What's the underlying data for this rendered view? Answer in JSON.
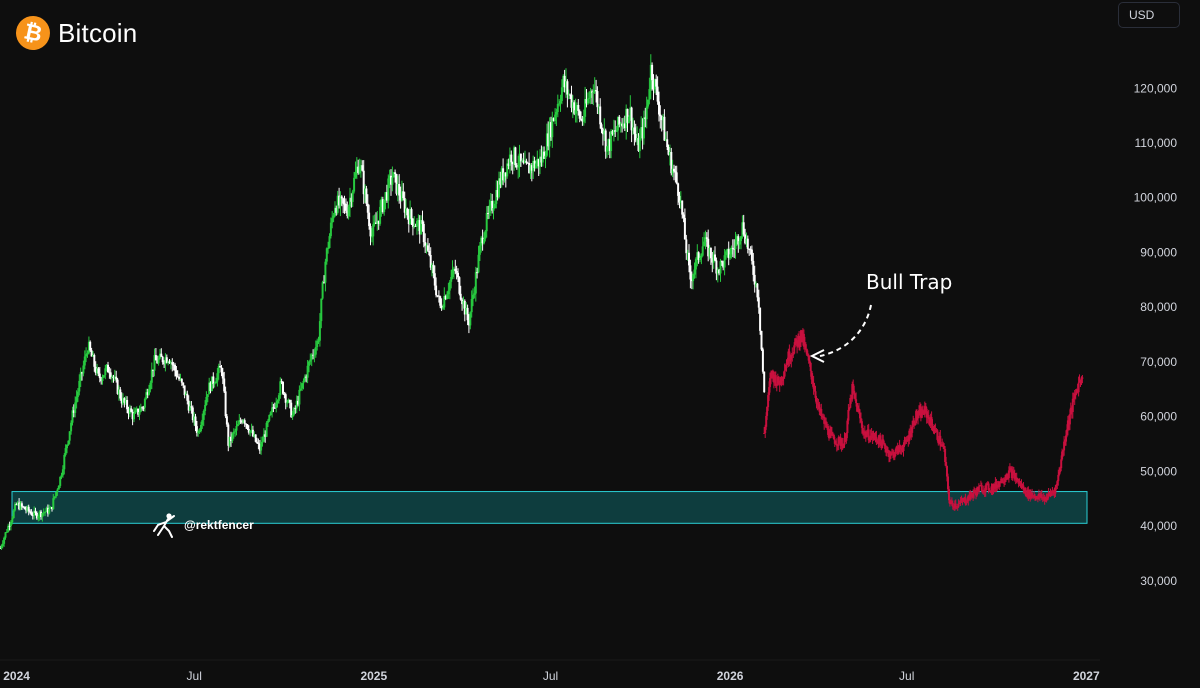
{
  "header": {
    "title": "Bitcoin",
    "logo_icon": "bitcoin-icon",
    "logo_symbol": "₿",
    "logo_color": "#f7931a"
  },
  "price_scale": {
    "currency_label": "USD"
  },
  "watermark": {
    "text": "@rektfencer",
    "icon": "fencer-icon"
  },
  "annotation": {
    "text": "Bull Trap",
    "arrow_icon": "dashed-arrow-icon"
  },
  "colors": {
    "background": "#0e0e0e",
    "up_candle": "#27c93f",
    "down_candle": "#ffffff",
    "projection": "#c8103e",
    "support_zone_fill": "#0f4d4f",
    "support_zone_border": "#2ad0d6",
    "axis_text": "#d1d4dc"
  },
  "chart_data": {
    "type": "line",
    "title": "Bitcoin",
    "xlabel": "",
    "ylabel": "",
    "y_axis_side": "right",
    "ylim": [
      21000,
      127000
    ],
    "xlim": [
      "2023-12-15",
      "2027-01-15"
    ],
    "y_ticks": [
      30000,
      40000,
      50000,
      60000,
      70000,
      80000,
      90000,
      100000,
      110000,
      120000
    ],
    "y_tick_labels": [
      "30,000",
      "40,000",
      "50,000",
      "60,000",
      "70,000",
      "80,000",
      "90,000",
      "100,000",
      "110,000",
      "120,000"
    ],
    "x_ticks": [
      "2024-01-01",
      "2024-07-01",
      "2025-01-01",
      "2025-07-01",
      "2026-01-01",
      "2026-07-01",
      "2027-01-01"
    ],
    "x_tick_labels": [
      "2024",
      "Jul",
      "2025",
      "Jul",
      "2026",
      "Jul",
      "2027"
    ],
    "x_tick_bold": [
      true,
      false,
      true,
      false,
      true,
      false,
      true
    ],
    "support_zone": {
      "low": 40500,
      "high": 46300
    },
    "series": [
      {
        "role": "price",
        "x": [
          "2023-12-15",
          "2024-01-01",
          "2024-01-20",
          "2024-02-05",
          "2024-02-15",
          "2024-02-28",
          "2024-03-08",
          "2024-03-14",
          "2024-03-25",
          "2024-04-05",
          "2024-04-18",
          "2024-04-30",
          "2024-05-10",
          "2024-05-21",
          "2024-06-05",
          "2024-06-20",
          "2024-07-05",
          "2024-07-15",
          "2024-07-29",
          "2024-08-05",
          "2024-08-20",
          "2024-09-06",
          "2024-09-28",
          "2024-10-10",
          "2024-10-29",
          "2024-11-05",
          "2024-11-12",
          "2024-11-22",
          "2024-12-05",
          "2024-12-17",
          "2024-12-30",
          "2025-01-20",
          "2025-02-05",
          "2025-02-20",
          "2025-03-10",
          "2025-03-25",
          "2025-04-08",
          "2025-04-22",
          "2025-05-10",
          "2025-05-22",
          "2025-06-05",
          "2025-06-22",
          "2025-07-14",
          "2025-08-02",
          "2025-08-14",
          "2025-08-28",
          "2025-09-05",
          "2025-09-20",
          "2025-09-28",
          "2025-10-06",
          "2025-10-12",
          "2025-10-30",
          "2025-11-10",
          "2025-11-21",
          "2025-12-05",
          "2025-12-20",
          "2026-01-05",
          "2026-01-14",
          "2026-01-22",
          "2026-01-30",
          "2026-02-05"
        ],
        "y": [
          36000,
          44000,
          42000,
          43000,
          49000,
          61000,
          68000,
          73000,
          67000,
          69000,
          63000,
          60000,
          62000,
          70000,
          71000,
          65000,
          57000,
          65000,
          69000,
          55000,
          60000,
          54000,
          66000,
          60000,
          71000,
          74000,
          88000,
          99000,
          98000,
          107000,
          93000,
          104000,
          97000,
          94000,
          80000,
          87000,
          77000,
          93000,
          103000,
          108000,
          105000,
          107000,
          121000,
          114000,
          121000,
          109000,
          112000,
          116000,
          109000,
          114000,
          124000,
          108000,
          101000,
          85000,
          92000,
          87000,
          91000,
          95000,
          89000,
          82000,
          64000
        ]
      },
      {
        "role": "projection",
        "x": [
          "2026-02-05",
          "2026-02-12",
          "2026-02-20",
          "2026-03-02",
          "2026-03-15",
          "2026-03-25",
          "2026-04-02",
          "2026-04-15",
          "2026-04-28",
          "2026-05-06",
          "2026-05-18",
          "2026-06-01",
          "2026-06-15",
          "2026-06-30",
          "2026-07-10",
          "2026-07-20",
          "2026-08-08",
          "2026-08-14",
          "2026-08-24",
          "2026-09-15",
          "2026-09-28",
          "2026-10-15",
          "2026-11-01",
          "2026-11-20",
          "2026-12-01",
          "2026-12-12",
          "2026-12-22",
          "2026-12-28"
        ],
        "y": [
          57000,
          68000,
          66000,
          71000,
          75000,
          68000,
          61000,
          56000,
          55000,
          65000,
          57000,
          56000,
          53000,
          55000,
          60000,
          61000,
          54000,
          44000,
          44000,
          47000,
          47000,
          50000,
          46000,
          45000,
          47000,
          58000,
          65000,
          68000
        ]
      }
    ]
  }
}
